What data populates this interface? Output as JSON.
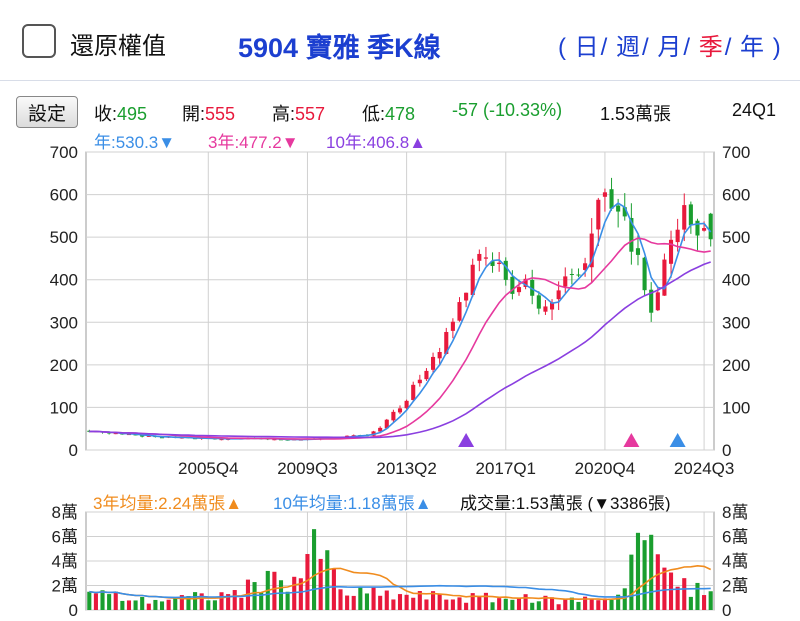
{
  "header": {
    "restore_label": "還原權值",
    "title": "5904 寶雅 季K線",
    "period_open": "(",
    "period_close": ")",
    "period_sep": "/",
    "periods": [
      "日",
      "週",
      "月",
      "季",
      "年"
    ],
    "active_period": "季"
  },
  "toolbar": {
    "settings_label": "設定"
  },
  "quote": {
    "close_label": "收:",
    "close": "495",
    "open_label": "開:",
    "open": "555",
    "high_label": "高:",
    "high": "557",
    "low_label": "低:",
    "low": "478",
    "change": "-57",
    "change_pct": "(-10.33%)",
    "volume": "1.53萬張",
    "period_code": "24Q1"
  },
  "ma_legend": {
    "ma1_label": "年:530.3",
    "ma1_mark": "▼",
    "ma3_label": "3年:477.2",
    "ma3_mark": "▼",
    "ma10_label": "10年:406.8",
    "ma10_mark": "▲"
  },
  "volume_legend": {
    "avg3_label": "3年均量:2.24萬張",
    "avg3_mark": "▲",
    "avg10_label": "10年均量:1.18萬張",
    "avg10_mark": "▲",
    "current_label": "成交量:1.53萬張",
    "diff": "(▼3386張)"
  },
  "colors": {
    "up": "#e8193c",
    "down": "#1a9e2f",
    "ma1": "#3a8ee6",
    "ma3": "#e6399e",
    "ma10": "#8a3fe0",
    "vol_avg3": "#f08c1e",
    "vol_avg10": "#3a8ee6",
    "title": "#1c3fd0"
  },
  "chart_data": [
    {
      "type": "candlestick",
      "y_ticks": [
        "700",
        "600",
        "500",
        "400",
        "300",
        "200",
        "100",
        "0"
      ],
      "ylim": [
        0,
        700
      ],
      "x_ticks": [
        "2005Q4",
        "2009Q3",
        "2013Q2",
        "2017Q1",
        "2020Q4",
        "2024Q3"
      ],
      "x_tick_quarter_index": [
        18,
        33,
        48,
        63,
        78,
        93
      ],
      "quarters_start": "2001Q2",
      "candles": [],
      "ma_year": [],
      "ma_3year": [],
      "ma_10year": [],
      "markers": [
        {
          "quarter_index": 57,
          "color": "#8a3fe0"
        },
        {
          "quarter_index": 82,
          "color": "#e6399e"
        },
        {
          "quarter_index": 89,
          "color": "#3a8ee6"
        }
      ],
      "grid": true
    },
    {
      "type": "bar",
      "y_ticks": [
        "8萬",
        "6萬",
        "4萬",
        "2萬",
        "0"
      ],
      "ylim": [
        0,
        8
      ],
      "unit": "萬張",
      "volumes": [],
      "avg_3year": [],
      "avg_10year": []
    }
  ]
}
